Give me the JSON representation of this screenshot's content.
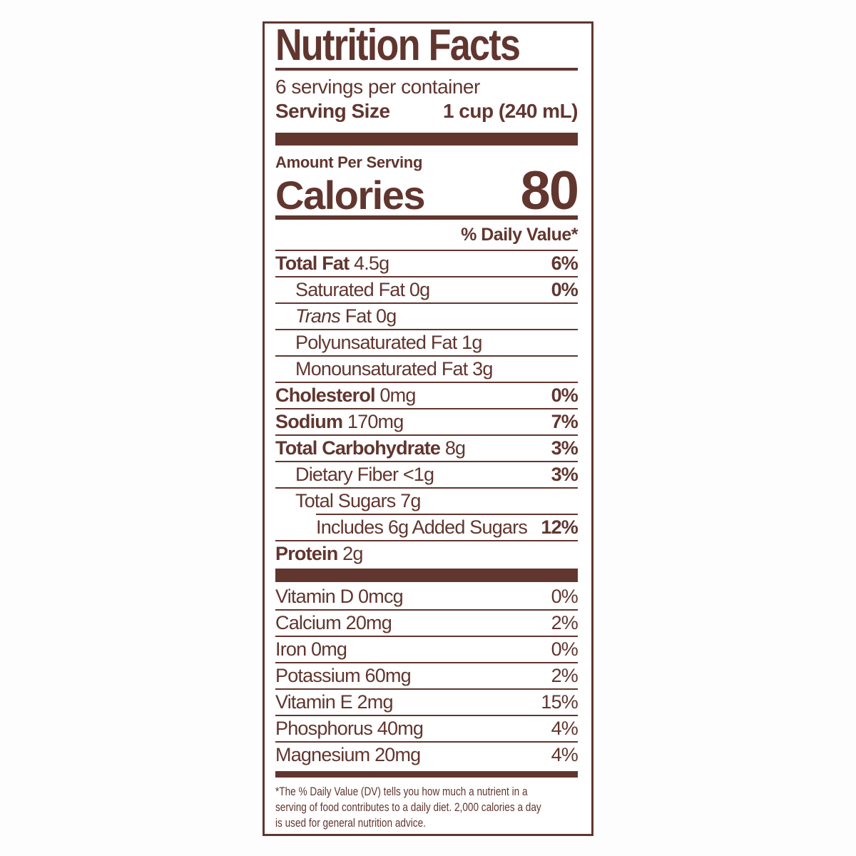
{
  "colors": {
    "ink": "#61362f",
    "page_background": "#fdfdfd",
    "label_background": "#ffffff"
  },
  "label": {
    "title": "Nutrition Facts",
    "servings_per_container": "6 servings per container",
    "serving_size": {
      "label": "Serving Size",
      "value": "1 cup (240 mL)"
    },
    "amount_per_serving": "Amount Per Serving",
    "calories": {
      "label": "Calories",
      "value": "80"
    },
    "daily_value_header": "% Daily Value*",
    "footnote_lines": [
      "*The % Daily Value (DV) tells you how much a nutrient in a",
      "serving of food contributes to a daily diet. 2,000 calories a day",
      "is used for general nutrition advice."
    ]
  },
  "nutrient_rows": [
    {
      "bold": "Total Fat",
      "rest": " 4.5g",
      "percent": "6%",
      "percent_bold": true,
      "indent": 0,
      "rule": "none"
    },
    {
      "rest": "Saturated Fat 0g",
      "percent": "0%",
      "percent_bold": true,
      "indent": 1,
      "rule": "full"
    },
    {
      "italic": "Trans",
      "rest": " Fat 0g",
      "percent": "",
      "indent": 1,
      "rule": "full"
    },
    {
      "rest": "Polyunsaturated Fat 1g",
      "percent": "",
      "indent": 1,
      "rule": "full"
    },
    {
      "rest": "Monounsaturated Fat 3g",
      "percent": "",
      "indent": 1,
      "rule": "full"
    },
    {
      "bold": "Cholesterol",
      "rest": " 0mg",
      "percent": "0%",
      "percent_bold": true,
      "indent": 0,
      "rule": "full"
    },
    {
      "bold": "Sodium",
      "rest": " 170mg",
      "percent": "7%",
      "percent_bold": true,
      "indent": 0,
      "rule": "full"
    },
    {
      "bold": "Total Carbohydrate",
      "rest": " 8g",
      "percent": "3%",
      "percent_bold": true,
      "indent": 0,
      "rule": "full"
    },
    {
      "rest": "Dietary Fiber <1g",
      "percent": "3%",
      "percent_bold": true,
      "indent": 1,
      "rule": "full"
    },
    {
      "rest": "Total Sugars 7g",
      "percent": "",
      "indent": 1,
      "rule": "full"
    },
    {
      "rest": "Includes 6g Added Sugars",
      "percent": "12%",
      "percent_bold": true,
      "indent": 0,
      "rule": "indent"
    },
    {
      "bold": "Protein",
      "rest": " 2g",
      "percent": "",
      "indent": 0,
      "rule": "full"
    }
  ],
  "vitamin_rows": [
    {
      "rest": "Vitamin D 0mcg",
      "percent": "0%",
      "rule": "none"
    },
    {
      "rest": "Calcium 20mg",
      "percent": "2%",
      "rule": "full"
    },
    {
      "rest": "Iron 0mg",
      "percent": "0%",
      "rule": "full"
    },
    {
      "rest": "Potassium 60mg",
      "percent": "2%",
      "rule": "full"
    },
    {
      "rest": "Vitamin E 2mg",
      "percent": "15%",
      "rule": "full"
    },
    {
      "rest": "Phosphorus 40mg",
      "percent": "4%",
      "rule": "full"
    },
    {
      "rest": "Magnesium 20mg",
      "percent": "4%",
      "rule": "full"
    }
  ]
}
